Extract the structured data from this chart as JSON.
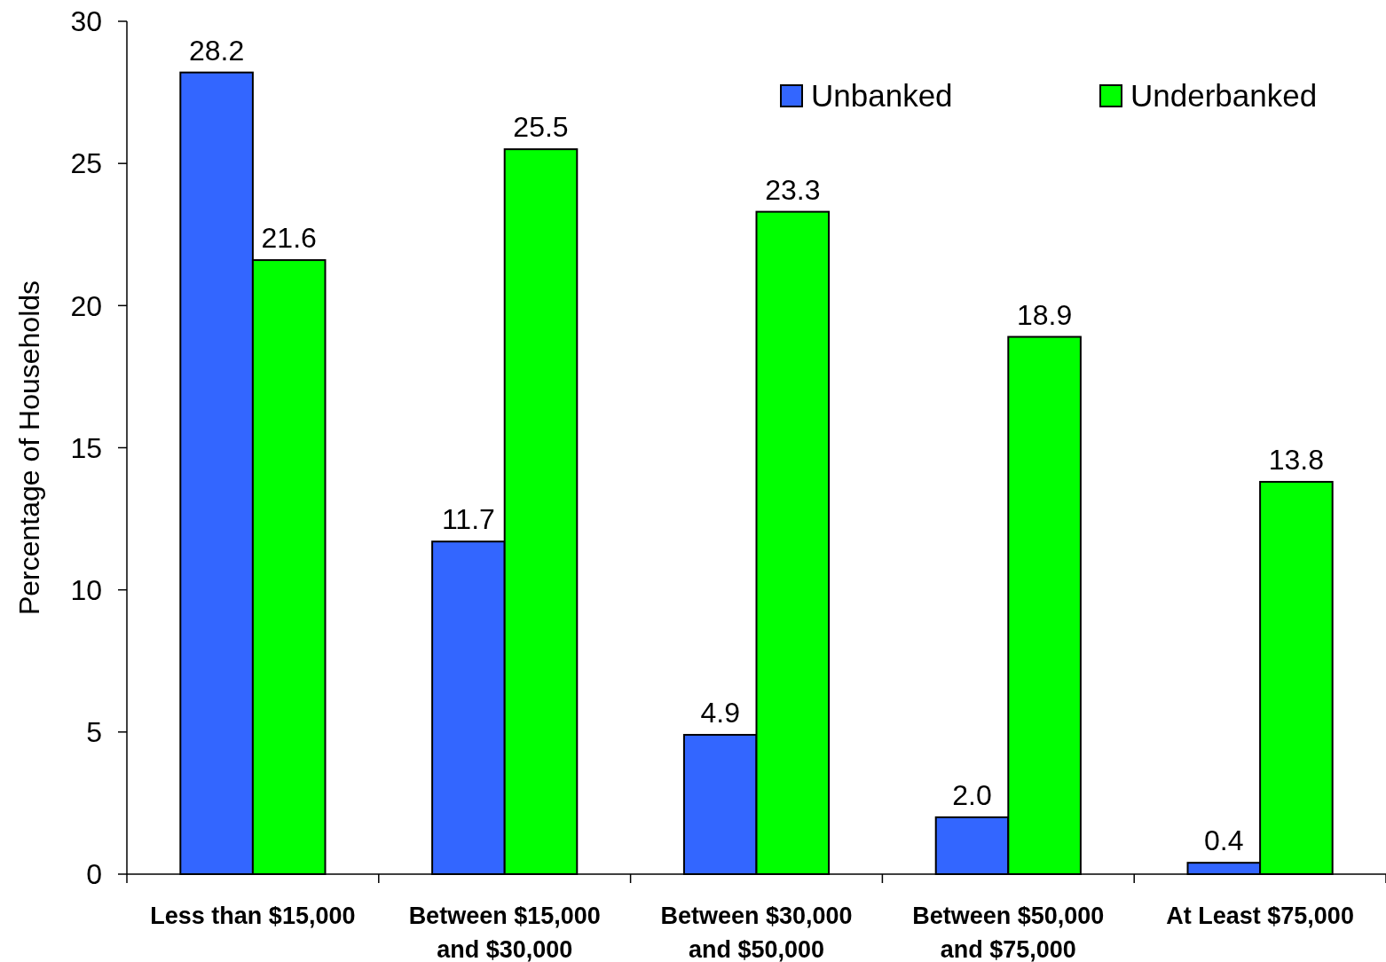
{
  "chart_data": {
    "type": "bar",
    "ylabel": "Percentage of Households",
    "categories": [
      "Less than $15,000",
      "Between $15,000 and $30,000",
      "Between $30,000 and $50,000",
      "Between $50,000 and $75,000",
      "At Least $75,000"
    ],
    "series": [
      {
        "name": "Unbanked",
        "color": "#3366ff",
        "values": [
          28.2,
          11.7,
          4.9,
          2.0,
          0.4
        ],
        "value_labels": [
          "28.2",
          "11.7",
          "4.9",
          "2.0",
          "0.4"
        ]
      },
      {
        "name": "Underbanked",
        "color": "#00ff00",
        "values": [
          21.6,
          25.5,
          23.3,
          18.9,
          13.8
        ],
        "value_labels": [
          "21.6",
          "25.5",
          "23.3",
          "18.9",
          "13.8"
        ]
      }
    ],
    "ylim": [
      0,
      30
    ],
    "yticks": [
      0,
      5,
      10,
      15,
      20,
      25,
      30
    ],
    "grid": false,
    "legend": "top right"
  }
}
